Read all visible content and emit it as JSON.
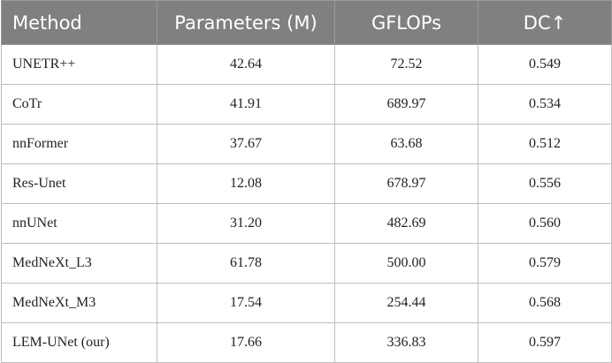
{
  "table": {
    "header": [
      "Method",
      "Parameters (M)",
      "GFLOPs",
      "DC↑"
    ],
    "rows": [
      [
        "UNETR++",
        "42.64",
        "72.52",
        "0.549"
      ],
      [
        "CoTr",
        "41.91",
        "689.97",
        "0.534"
      ],
      [
        "nnFormer",
        "37.67",
        "63.68",
        "0.512"
      ],
      [
        "Res-Unet",
        "12.08",
        "678.97",
        "0.556"
      ],
      [
        "nnUNet",
        "31.20",
        "482.69",
        "0.560"
      ],
      [
        "MedNeXt_L3",
        "61.78",
        "500.00",
        "0.579"
      ],
      [
        "MedNeXt_M3",
        "17.54",
        "254.44",
        "0.568"
      ],
      [
        "LEM-UNet (our)",
        "17.66",
        "336.83",
        "0.597"
      ]
    ]
  }
}
